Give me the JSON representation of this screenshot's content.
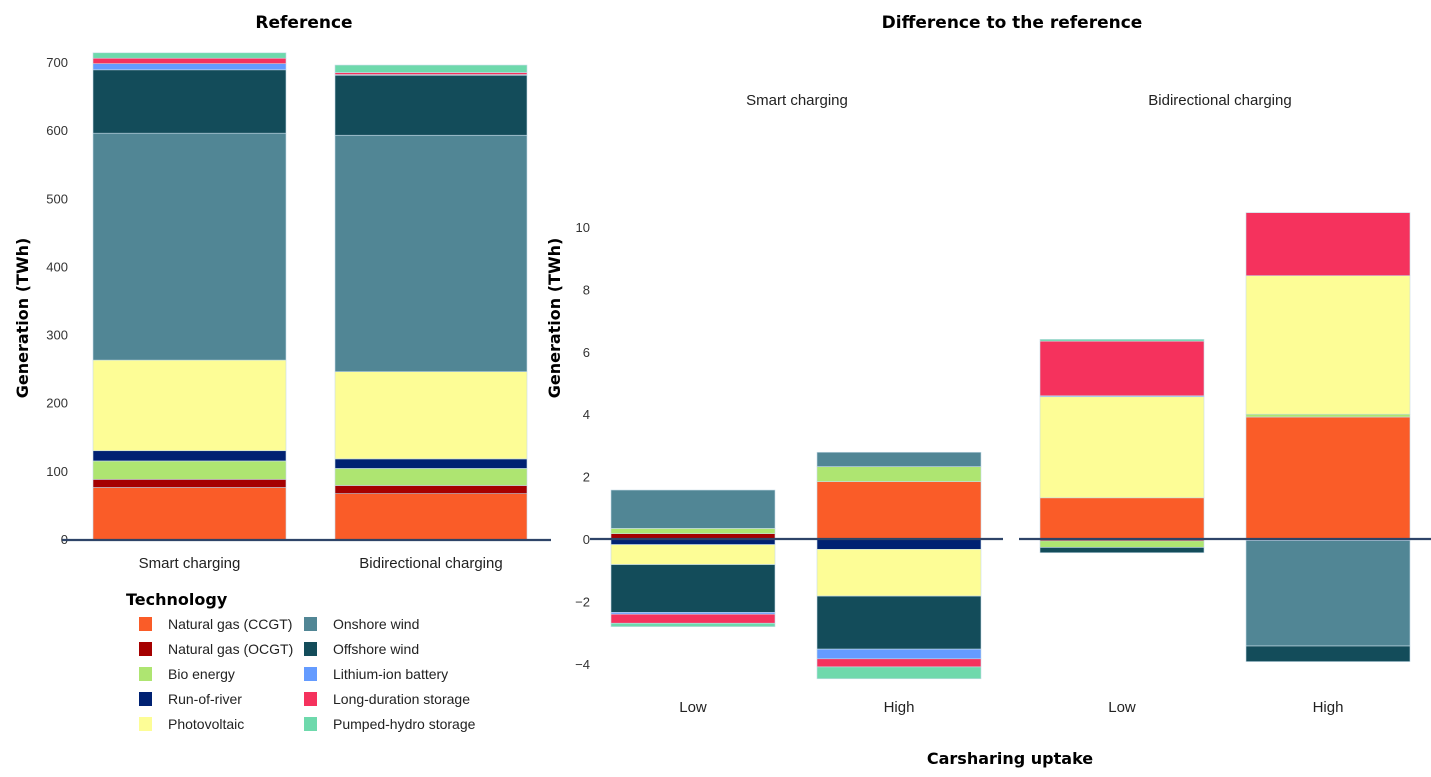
{
  "technologies": [
    {
      "key": "ccgt",
      "label": "Natural gas (CCGT)",
      "color": "#fa5c28"
    },
    {
      "key": "ocgt",
      "label": "Natural gas (OCGT)",
      "color": "#a50000"
    },
    {
      "key": "bio",
      "label": "Bio energy",
      "color": "#aee571"
    },
    {
      "key": "ror",
      "label": "Run-of-river",
      "color": "#002172"
    },
    {
      "key": "pv",
      "label": "Photovoltaic",
      "color": "#fdfd96"
    },
    {
      "key": "onshore",
      "label": "Onshore wind",
      "color": "#518695"
    },
    {
      "key": "offshore",
      "label": "Offshore wind",
      "color": "#134c5a"
    },
    {
      "key": "li",
      "label": "Lithium-ion battery",
      "color": "#649bff"
    },
    {
      "key": "lds",
      "label": "Long-duration storage",
      "color": "#f5325d"
    },
    {
      "key": "phs",
      "label": "Pumped-hydro storage",
      "color": "#6ed9ac"
    }
  ],
  "legend": {
    "title": "Technology"
  },
  "chart_data": [
    {
      "type": "bar",
      "stacked": true,
      "title": "Reference",
      "xlabel": "",
      "ylabel": "Generation (TWh)",
      "ylim": [
        0,
        715
      ],
      "yticks": [
        0,
        100,
        200,
        300,
        400,
        500,
        600,
        700
      ],
      "categories": [
        "Smart charging",
        "Bidirectional charging"
      ],
      "series": [
        {
          "name": "Natural gas (CCGT)",
          "values": [
            77,
            68
          ]
        },
        {
          "name": "Natural gas (OCGT)",
          "values": [
            12,
            12
          ]
        },
        {
          "name": "Bio energy",
          "values": [
            27,
            25
          ]
        },
        {
          "name": "Run-of-river",
          "values": [
            15,
            14
          ]
        },
        {
          "name": "Photovoltaic",
          "values": [
            133,
            128
          ]
        },
        {
          "name": "Onshore wind",
          "values": [
            333,
            347
          ]
        },
        {
          "name": "Offshore wind",
          "values": [
            93,
            88
          ]
        },
        {
          "name": "Lithium-ion battery",
          "values": [
            9,
            1
          ]
        },
        {
          "name": "Long-duration storage",
          "values": [
            8,
            3
          ]
        },
        {
          "name": "Pumped-hydro storage",
          "values": [
            8,
            11
          ]
        }
      ],
      "grid": false
    },
    {
      "type": "bar",
      "stacked": true,
      "title": "Difference to the reference",
      "xlabel": "Carsharing uptake",
      "ylabel": "Generation (TWh)",
      "ylim": [
        -4.5,
        10.5
      ],
      "yticks": [
        -4,
        -2,
        0,
        2,
        4,
        6,
        8,
        10
      ],
      "ytick_labels": [
        "−4",
        "−2",
        "0",
        "2",
        "4",
        "6",
        "8",
        "10"
      ],
      "facets": [
        {
          "label": "Smart charging",
          "categories": [
            "Low",
            "High"
          ]
        },
        {
          "label": "Bidirectional charging",
          "categories": [
            "Low",
            "High"
          ]
        }
      ],
      "series": [
        {
          "name": "Natural gas (CCGT)",
          "values": [
            0.0,
            1.84,
            1.32,
            3.91
          ]
        },
        {
          "name": "Natural gas (OCGT)",
          "values": [
            0.17,
            0.0,
            -0.06,
            0.0
          ]
        },
        {
          "name": "Bio energy",
          "values": [
            0.17,
            0.48,
            -0.21,
            0.09
          ]
        },
        {
          "name": "Run-of-river",
          "values": [
            -0.18,
            -0.33,
            0.0,
            -0.05
          ]
        },
        {
          "name": "Photovoltaic",
          "values": [
            -0.64,
            -1.5,
            3.24,
            4.44
          ]
        },
        {
          "name": "Onshore wind",
          "values": [
            1.23,
            0.46,
            0.0,
            -3.38
          ]
        },
        {
          "name": "Offshore wind",
          "values": [
            -1.53,
            -1.7,
            -0.17,
            -0.5
          ]
        },
        {
          "name": "Lithium-ion battery",
          "values": [
            -0.06,
            -0.31,
            0.03,
            0.0
          ]
        },
        {
          "name": "Long-duration storage",
          "values": [
            -0.29,
            -0.26,
            1.75,
            2.02
          ]
        },
        {
          "name": "Pumped-hydro storage",
          "values": [
            -0.11,
            -0.38,
            0.06,
            0.0
          ]
        }
      ],
      "grid": false
    }
  ]
}
